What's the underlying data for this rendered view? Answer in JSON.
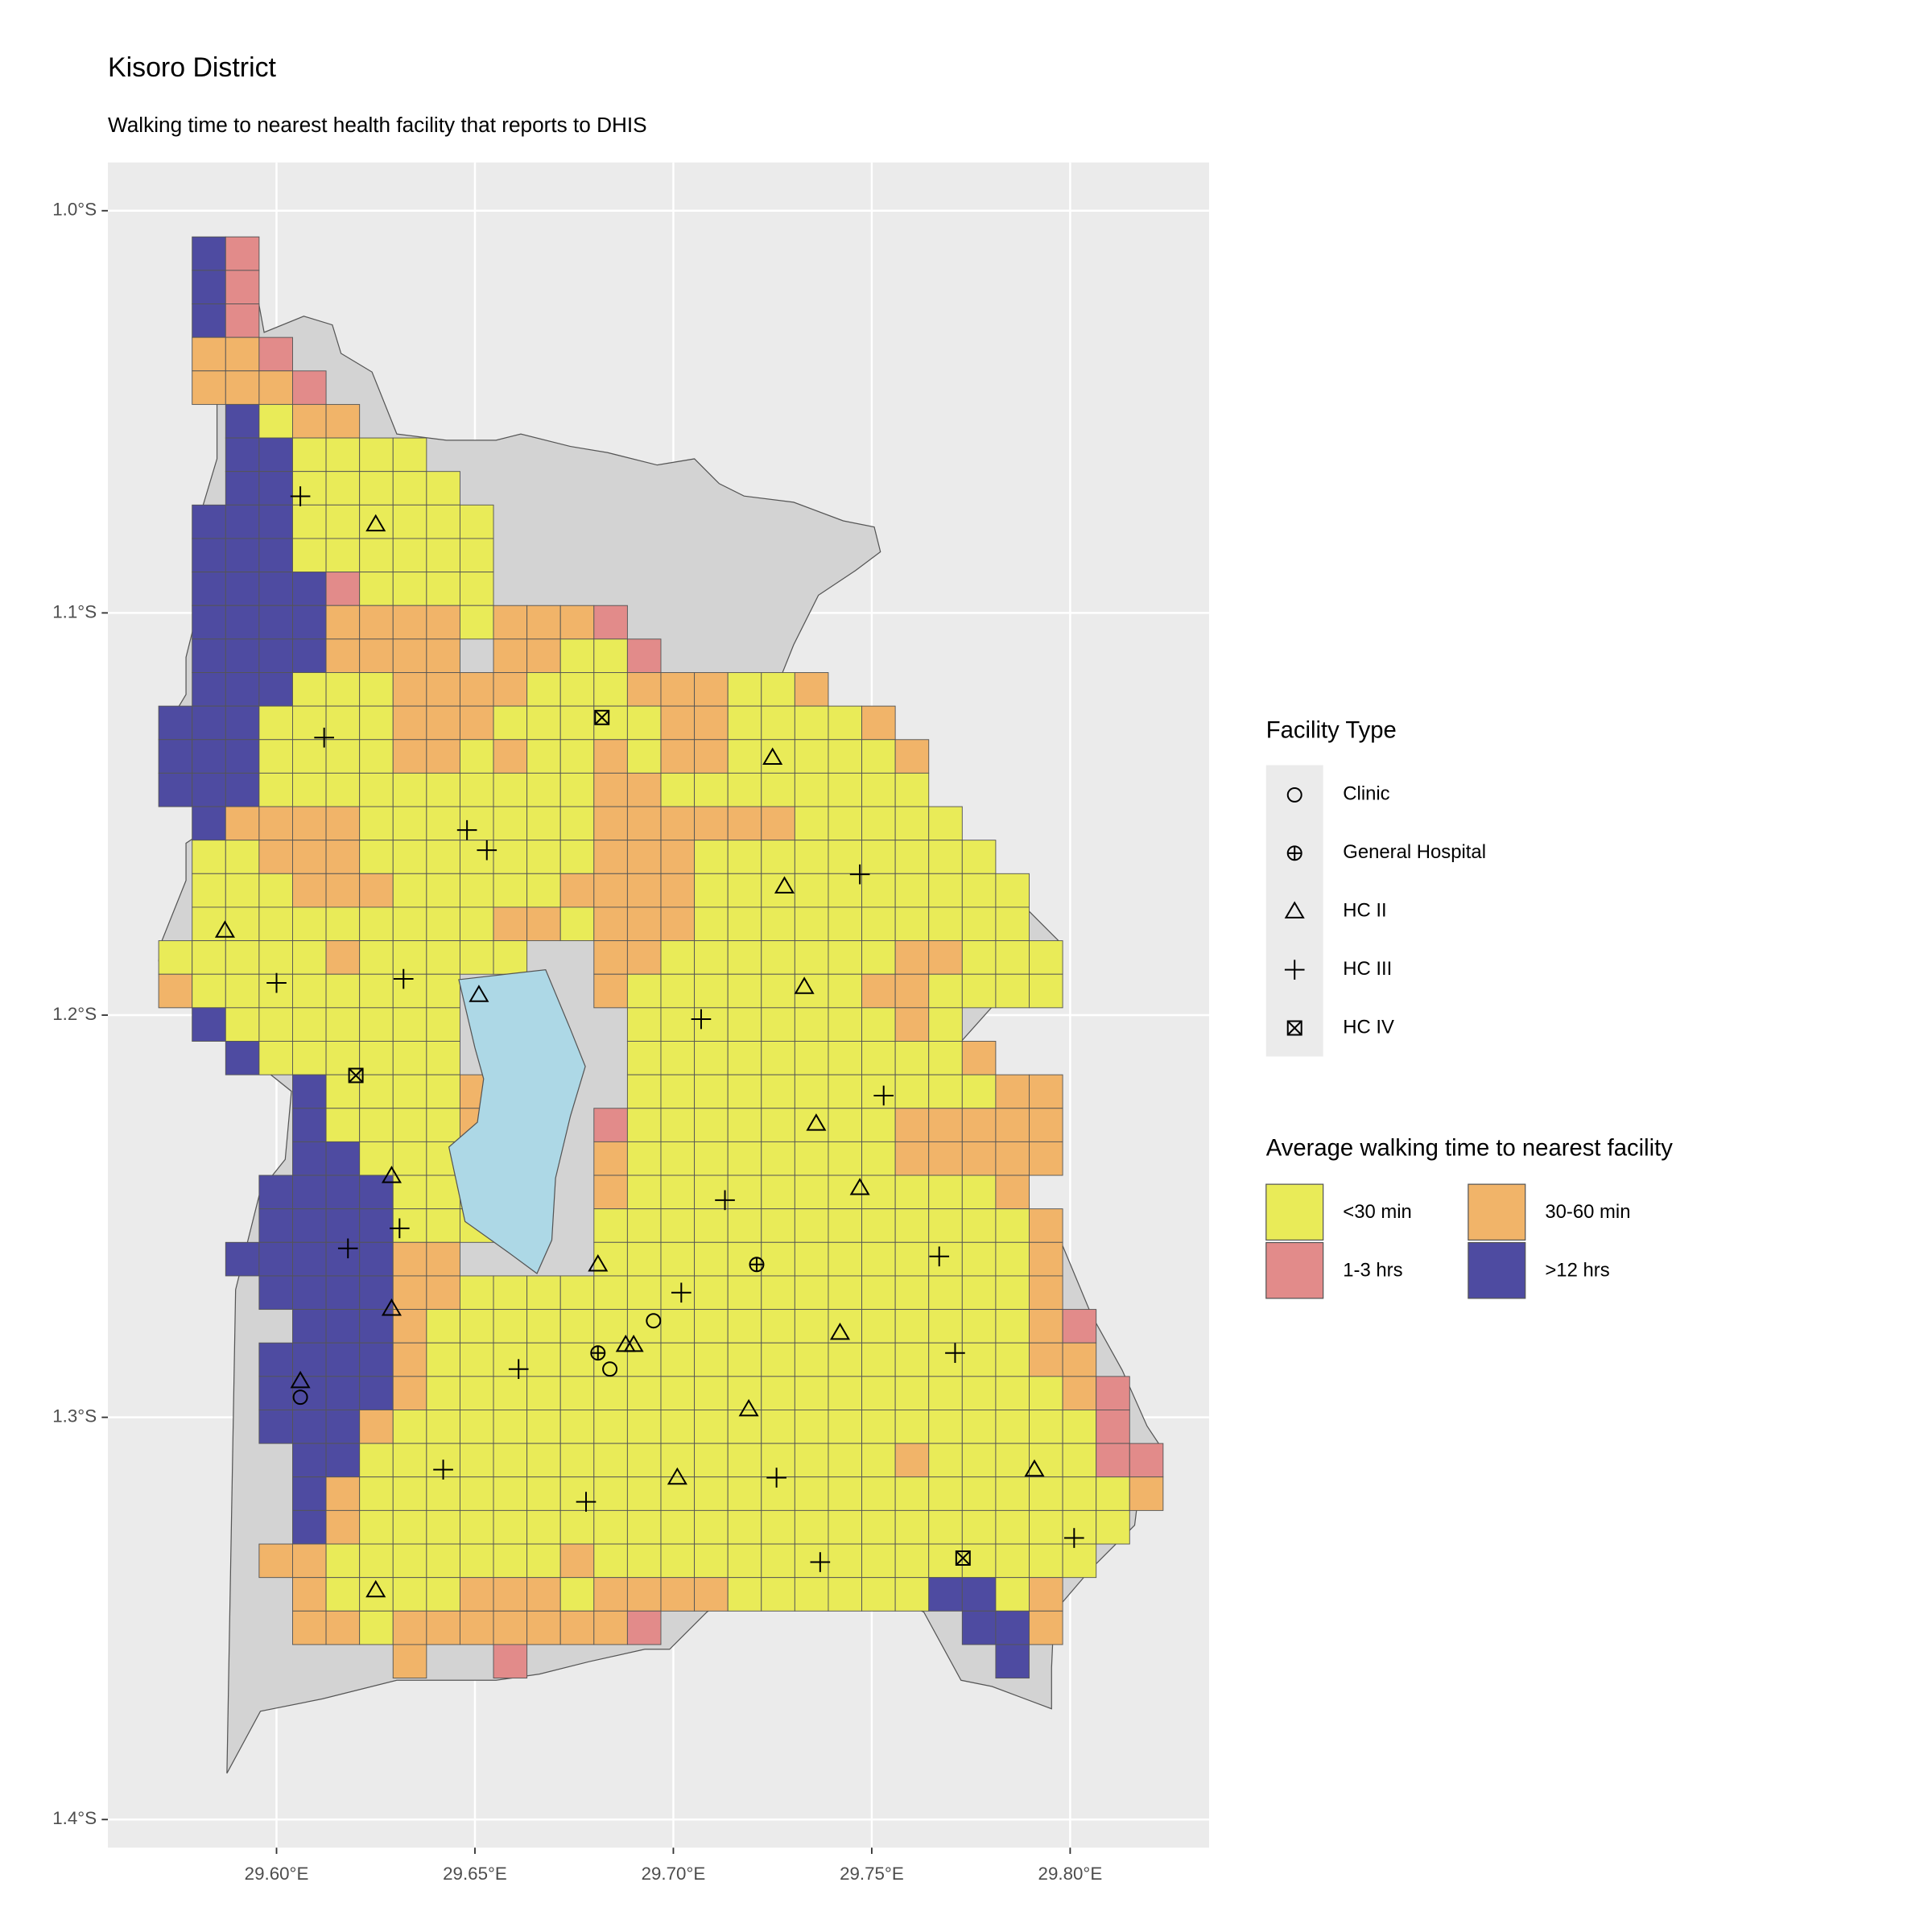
{
  "chart_data": {
    "type": "map",
    "title": "Kisoro District",
    "subtitle": "Walking time to nearest health facility that reports to DHIS",
    "xlim": [
      29.5575,
      29.835
    ],
    "ylim": [
      -1.407,
      -0.988
    ],
    "xticks": [
      {
        "value": 29.6,
        "label": "29.60°E"
      },
      {
        "value": 29.65,
        "label": "29.65°E"
      },
      {
        "value": 29.7,
        "label": "29.70°E"
      },
      {
        "value": 29.75,
        "label": "29.75°E"
      },
      {
        "value": 29.8,
        "label": "29.80°E"
      }
    ],
    "yticks": [
      {
        "value": -1.0,
        "label": "1.0°S"
      },
      {
        "value": -1.1,
        "label": "1.1°S"
      },
      {
        "value": -1.2,
        "label": "1.2°S"
      },
      {
        "value": -1.3,
        "label": "1.3°S"
      },
      {
        "value": -1.4,
        "label": "1.4°S"
      }
    ],
    "grid": true,
    "fill_legend": {
      "title": "Average walking time to nearest facility",
      "categories": [
        {
          "name": "<30 min",
          "color": "#e9eb58",
          "key": "Y"
        },
        {
          "name": "30-60 min",
          "color": "#f1b469",
          "key": "O"
        },
        {
          "name": "1-3 hrs",
          "color": "#e28b8a",
          "key": "R"
        },
        {
          "name": ">12 hrs",
          "color": "#4e4ba1",
          "key": "B"
        }
      ]
    },
    "cells": [
      ".BR",
      ".BR",
      ".BR",
      ".OOR",
      ".OOOR",
      "..BYOO",
      "..BBYYYY",
      "..BBYYYYY",
      ".BBBYYYYYY",
      ".BBBYYYYYY",
      ".BBBBRYYYY",
      ".BBBBOOOOYOOOR",
      ".BBBBOOOO.OOYYR",
      ".BBBYYYOOOOYYYOOOYYO",
      "BBBYYYYOOOYYYYYOOYYYYO",
      "BBBYYYYOOYOYYOYOOYYYYYO",
      "BBBYYYYYYYYYYOOYYYYYYYY",
      ".BOOOOYYYYYYYOOOOOOYYYYY",
      ".YYOOOYYYYYYYOOOYYYYYYYYY",
      ".YYYOOOYYYYYOOOOYYYYYYYYYY",
      ".YYYYYYYYYOOYOOOYYYYYYYYYY",
      "YYYYYOYYYYY..OOYYYYYYYOOYYY",
      "OYYYYYYYY....OYYYYYYYOOYYYY",
      ".BYYYYYYY.....YYYYYYYYOY",
      "..BYYYYYY.....YYYYYYYYYYO",
      "....BYYYYO....YYYYYYYYYYYOO",
      "....BYYYYO...RYYYYYYYYOOOOO",
      "....BBYYYY...OYYYYYYYYOOOOO",
      "...BBBBYYY...OYYYYYYYYYYYO",
      "...BBBBYYY...YYYYYYYYYYYYYO",
      "..BBBBBOO....YYYYYYYYYYYYYO",
      "...BBBBOOYYYYYYYYYYYYYYYYYO",
      "....BBBOYYYYYYYYYYYYYYYYYYOR",
      "...BBBBOYYYYYYYYYYYYYYYYYYOO",
      "...BBBBOYYYYYYYYYYYYYYYYYYYOR",
      "...BBBOYYYYYYYYYYYYYYYYYYYYYR",
      "....BBYYYYYYYYYYYYYYYYOYYYYYRR",
      "....BOYYYYYYYYYYYYYYYYYYYYYYYO",
      "....BOYYYYYYYYYYYYYYYYYYYYYYY",
      "...OOYYYYYYYOYYYYYYYYYYYYYYY",
      "....OYYYYOOOYOOOOYYYYYYBBYO",
      "....OOYOOOOOOOR.........BBO",
      ".......O..R..............B"
    ],
    "legend_title": "Facility Type",
    "series": [
      {
        "name": "Clinic",
        "shape": "circle",
        "x": [
          29.695,
          29.684,
          29.606
        ],
        "y": [
          -1.276,
          -1.288,
          -1.295
        ]
      },
      {
        "name": "General Hospital",
        "shape": "circle-plus",
        "x": [
          29.721,
          29.681
        ],
        "y": [
          -1.262,
          -1.284
        ]
      },
      {
        "name": "HC II",
        "shape": "triangle",
        "x": [
          29.625,
          29.725,
          29.728,
          29.587,
          29.733,
          29.651,
          29.736,
          29.629,
          29.747,
          29.681,
          29.629,
          29.742,
          29.688,
          29.69,
          29.606,
          29.719,
          29.701,
          29.791,
          29.625
        ],
        "y": [
          -1.078,
          -1.136,
          -1.168,
          -1.179,
          -1.193,
          -1.195,
          -1.227,
          -1.24,
          -1.243,
          -1.262,
          -1.273,
          -1.279,
          -1.282,
          -1.282,
          -1.291,
          -1.298,
          -1.315,
          -1.313,
          -1.343
        ]
      },
      {
        "name": "HC III",
        "shape": "plus",
        "x": [
          29.606,
          29.612,
          29.648,
          29.653,
          29.747,
          29.6,
          29.632,
          29.707,
          29.753,
          29.713,
          29.631,
          29.618,
          29.702,
          29.767,
          29.661,
          29.771,
          29.642,
          29.726,
          29.678,
          29.801,
          29.737
        ],
        "y": [
          -1.071,
          -1.131,
          -1.154,
          -1.159,
          -1.165,
          -1.192,
          -1.191,
          -1.201,
          -1.22,
          -1.246,
          -1.253,
          -1.258,
          -1.269,
          -1.26,
          -1.288,
          -1.284,
          -1.313,
          -1.315,
          -1.321,
          -1.33,
          -1.336
        ]
      },
      {
        "name": "HC IV",
        "shape": "square-x",
        "x": [
          29.682,
          29.62,
          29.773
        ],
        "y": [
          -1.126,
          -1.215,
          -1.335
        ]
      }
    ]
  }
}
